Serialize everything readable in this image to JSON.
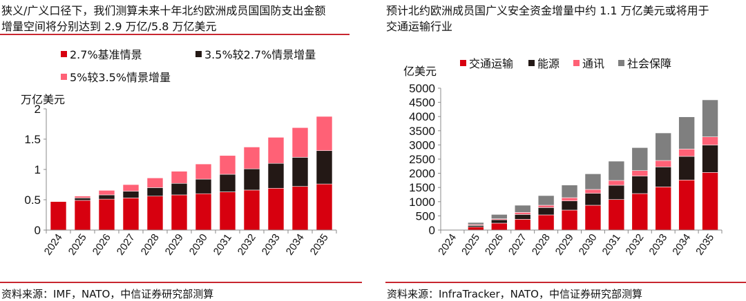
{
  "left": {
    "title_line1": "狭义/广义口径下，我们测算未来十年北约欧洲成员国国防支出金额",
    "title_line2": "增量空间将分别达到 2.9 万亿/5.8 万亿美元",
    "source": "资料来源：IMF，NATO，中信证券研究部测算"
  },
  "right": {
    "title_line1": "预计北约欧洲成员国广义安全资金增量中约 1.1 万亿美元或将用于",
    "title_line2": "交通运输行业",
    "source": "资料来源：InfraTracker，NATO，中信证券研究部测算"
  },
  "chart_data": [
    {
      "type": "bar",
      "stacked": true,
      "ylabel": "万亿美元",
      "ylim": [
        0,
        2
      ],
      "yticks": [
        "0",
        "0.5",
        "1",
        "1.5",
        "2"
      ],
      "ytick_values": [
        0,
        0.5,
        1,
        1.5,
        2
      ],
      "categories": [
        "2024",
        "2025",
        "2026",
        "2027",
        "2028",
        "2029",
        "2030",
        "2031",
        "2032",
        "2033",
        "2034",
        "2035"
      ],
      "legend": "top",
      "series": [
        {
          "name": "2.7%基准情景",
          "color": "#d7000f",
          "values": [
            0.47,
            0.49,
            0.51,
            0.53,
            0.56,
            0.58,
            0.6,
            0.63,
            0.66,
            0.69,
            0.72,
            0.76
          ]
        },
        {
          "name": "3.5%较2.7%情景增量",
          "color": "#231815",
          "values": [
            0,
            0.04,
            0.07,
            0.11,
            0.14,
            0.19,
            0.24,
            0.29,
            0.35,
            0.41,
            0.48,
            0.55
          ]
        },
        {
          "name": "5%较3.5%情景增量",
          "color": "#ff6176",
          "values": [
            0,
            0.03,
            0.075,
            0.11,
            0.16,
            0.2,
            0.25,
            0.31,
            0.36,
            0.43,
            0.49,
            0.565
          ]
        }
      ]
    },
    {
      "type": "bar",
      "stacked": true,
      "ylabel": "亿美元",
      "ylim": [
        0,
        5000
      ],
      "yticks": [
        "0",
        "500",
        "1000",
        "1500",
        "2000",
        "2500",
        "3000",
        "3500",
        "4000",
        "4500",
        "5000"
      ],
      "ytick_values": [
        0,
        500,
        1000,
        1500,
        2000,
        2500,
        3000,
        3500,
        4000,
        4500,
        5000
      ],
      "categories": [
        "2024",
        "2025",
        "2026",
        "2027",
        "2028",
        "2029",
        "2030",
        "2031",
        "2032",
        "2033",
        "2034",
        "2035"
      ],
      "legend": "top",
      "series": [
        {
          "name": "交通运输",
          "color": "#d7000f",
          "values": [
            0,
            105,
            243,
            380,
            534,
            704,
            874,
            1076,
            1286,
            1521,
            1764,
            2031
          ]
        },
        {
          "name": "能源",
          "color": "#231815",
          "values": [
            0,
            57,
            121,
            170,
            259,
            323,
            420,
            502,
            615,
            704,
            833,
            963
          ]
        },
        {
          "name": "通讯",
          "color": "#ff6176",
          "values": [
            0,
            32,
            32,
            73,
            81,
            114,
            138,
            170,
            195,
            226,
            259,
            291
          ]
        },
        {
          "name": "社会保障",
          "color": "#7f7f7f",
          "values": [
            0,
            73,
            154,
            251,
            340,
            445,
            550,
            679,
            809,
            971,
            1133,
            1303
          ]
        }
      ]
    }
  ]
}
